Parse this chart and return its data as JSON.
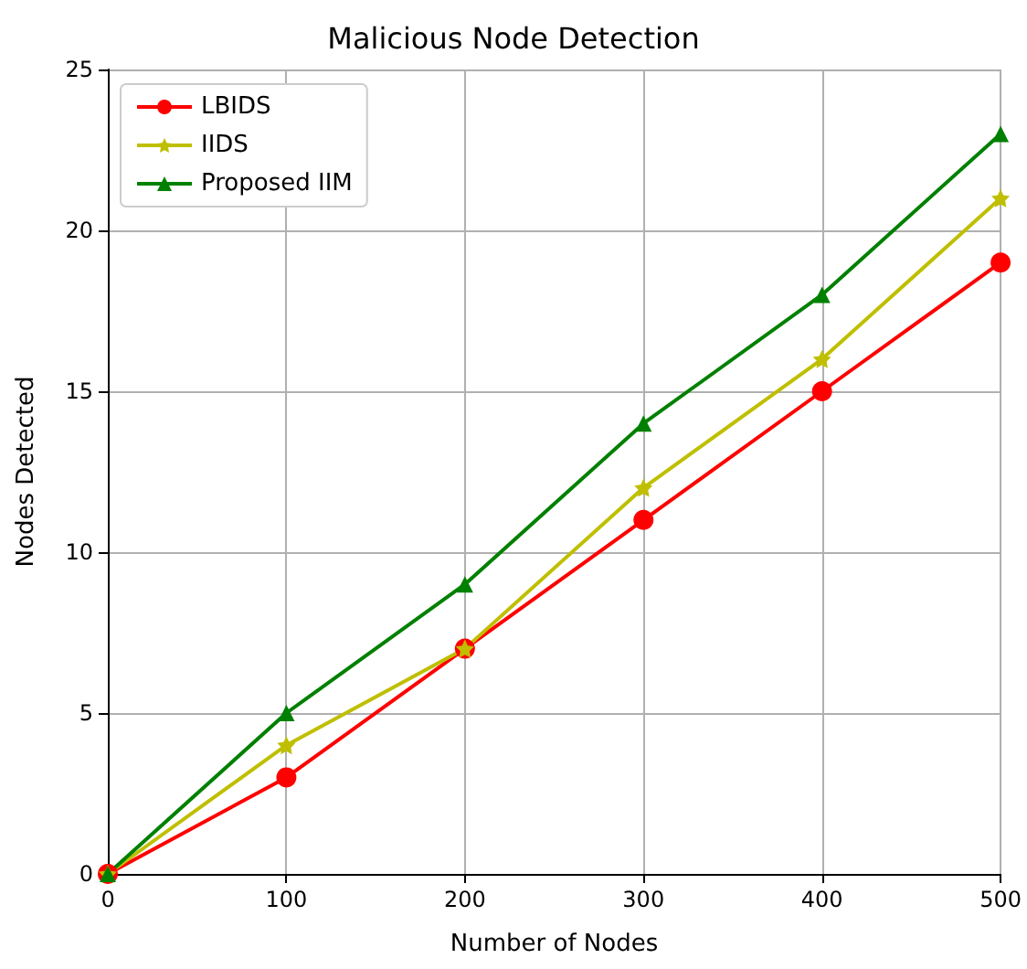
{
  "chart_data": {
    "type": "line",
    "title": "Malicious Node Detection",
    "xlabel": "Number of Nodes",
    "ylabel": "Nodes Detected",
    "x": [
      0,
      100,
      200,
      300,
      400,
      500
    ],
    "series": [
      {
        "name": "LBIDS",
        "color": "#ff0000",
        "marker": "circle",
        "values": [
          0,
          3,
          7,
          11,
          15,
          19
        ]
      },
      {
        "name": "IIDS",
        "color": "#bfbf00",
        "marker": "star",
        "values": [
          0,
          4,
          7,
          12,
          16,
          21
        ]
      },
      {
        "name": "Proposed IIM",
        "color": "#008000",
        "marker": "triangle",
        "values": [
          0,
          5,
          9,
          14,
          18,
          23
        ]
      }
    ],
    "xlim": [
      0,
      500
    ],
    "xticks": [
      0,
      100,
      200,
      300,
      400,
      500
    ],
    "ylim": [
      0,
      25
    ],
    "yticks": [
      0,
      5,
      10,
      15,
      20,
      25
    ],
    "grid": true,
    "legend": "top left",
    "line_style": "solid"
  }
}
